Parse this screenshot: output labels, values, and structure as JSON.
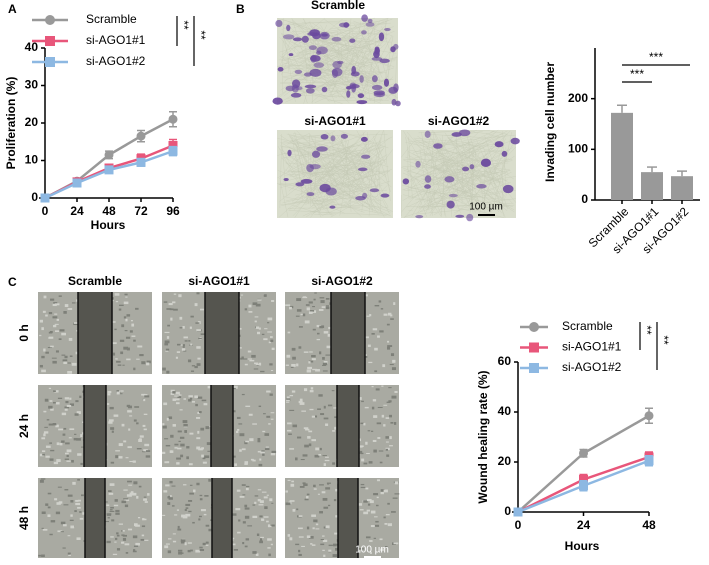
{
  "figure": {
    "panel_labels": [
      "A",
      "B",
      "C"
    ],
    "invasion": {
      "labels": [
        "Scramble",
        "si-AGO1#1",
        "si-AGO1#2"
      ],
      "scale_bar": "100 µm"
    },
    "wound": {
      "columns": [
        "Scramble",
        "si-AGO1#1",
        "si-AGO1#2"
      ],
      "rows": [
        "0 h",
        "24 h",
        "48 h"
      ],
      "scale_bar": "100 µm"
    }
  },
  "chart_data": [
    {
      "type": "line",
      "x_label": "Hours",
      "y_label": "Proliferation (%)",
      "x": [
        0,
        24,
        48,
        72,
        96
      ],
      "xlim": [
        0,
        96
      ],
      "xticks": [
        0,
        24,
        48,
        72,
        96
      ],
      "ylim": [
        0,
        40
      ],
      "yticks": [
        0,
        10,
        20,
        30,
        40
      ],
      "series": [
        {
          "name": "Scramble",
          "color": "#999999",
          "values": [
            0,
            4.5,
            11.5,
            16.5,
            21
          ],
          "errors": [
            0,
            0.5,
            1,
            1.5,
            2
          ]
        },
        {
          "name": "si-AGO1#1",
          "color": "#e8567a",
          "values": [
            0,
            4.3,
            8,
            10.5,
            14
          ],
          "errors": [
            0,
            0.5,
            1,
            1.2,
            1.6
          ]
        },
        {
          "name": "si-AGO1#2",
          "color": "#8db8e2",
          "values": [
            0,
            4,
            7.5,
            9.5,
            12.5
          ],
          "errors": [
            0,
            0.5,
            0.8,
            1,
            1.2
          ]
        }
      ],
      "annotations": [
        "**",
        "**"
      ]
    },
    {
      "type": "bar",
      "y_label": "Invading cell number",
      "categories": [
        "Scramble",
        "si-AGO1#1",
        "si-AGO1#2"
      ],
      "values": [
        172,
        55,
        47
      ],
      "errors": [
        15,
        10,
        10
      ],
      "color": "#999999",
      "ylim": [
        0,
        300
      ],
      "yticks": [
        0,
        100,
        200
      ],
      "annotations": [
        "***",
        "***"
      ]
    },
    {
      "type": "line",
      "x_label": "Hours",
      "y_label": "Wound healing rate (%)",
      "x": [
        0,
        24,
        48
      ],
      "xlim": [
        0,
        48
      ],
      "xticks": [
        0,
        24,
        48
      ],
      "ylim": [
        0,
        60
      ],
      "yticks": [
        0,
        20,
        40,
        60
      ],
      "series": [
        {
          "name": "Scramble",
          "color": "#999999",
          "values": [
            0,
            23.5,
            38.5
          ],
          "errors": [
            0,
            1.5,
            3
          ]
        },
        {
          "name": "si-AGO1#1",
          "color": "#e8567a",
          "values": [
            0,
            13,
            22
          ],
          "errors": [
            0,
            2,
            2
          ]
        },
        {
          "name": "si-AGO1#2",
          "color": "#8db8e2",
          "values": [
            0,
            10.5,
            20.5
          ],
          "errors": [
            0,
            2,
            2
          ]
        }
      ],
      "annotations": [
        "**",
        "**"
      ]
    }
  ]
}
